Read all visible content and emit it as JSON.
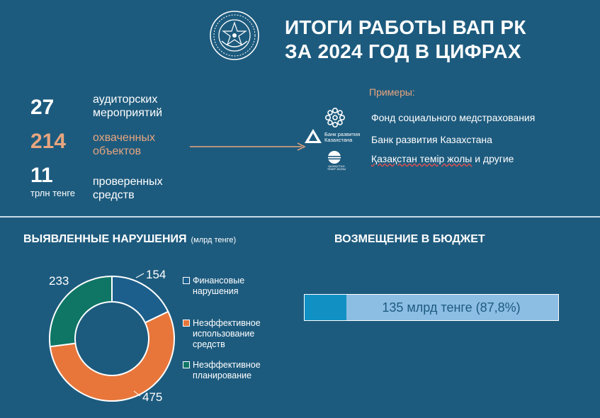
{
  "header": {
    "title_line1": "ИТОГИ РАБОТЫ ВАП РК",
    "title_line2": "ЗА 2024 ГОД В ЦИФРАХ"
  },
  "stats": [
    {
      "value": "27",
      "unit": "",
      "label": "аудиторских мероприятий"
    },
    {
      "value": "214",
      "unit": "",
      "label": "охваченных объектов"
    },
    {
      "value": "11",
      "unit": "трлн тенге",
      "label": "проверенных средств"
    }
  ],
  "examples": {
    "title": "Примеры:",
    "items": [
      {
        "text": "Фонд социального медстрахования",
        "icon": "fsms-logo-icon"
      },
      {
        "text": "Банк развития Казахстана",
        "icon": "development-bank-logo-icon",
        "logo_text": "Банк развития Казахстана"
      },
      {
        "text_main": "Қазақстан темір жолы",
        "text_tail": " и другие",
        "icon": "ktz-logo-icon",
        "logo_text": "ҚАЗАҚСТАН ТЕМІР ЖОЛЫ"
      }
    ]
  },
  "violations": {
    "title": "ВЫЯВЛЕННЫЕ НАРУШЕНИЯ",
    "subtitle": "(млрд тенге)",
    "legend": [
      "Финансовые нарушения",
      "Неэффективное использование средств",
      "Неэффективное планирование"
    ]
  },
  "compensation": {
    "title": "ВОЗМЕЩЕНИЕ В БЮДЖЕТ",
    "bar_text": "135 млрд тенге (87,8%)",
    "fill_fraction": 0.165
  },
  "colors": {
    "background": "#1d5b7e",
    "accent": "#e8a57e",
    "financial": "#1c5f8c",
    "inefficient_use": "#e8763a",
    "inefficient_planning": "#0f7666"
  },
  "chart_data": {
    "type": "pie",
    "title": "ВЫЯВЛЕННЫЕ НАРУШЕНИЯ",
    "subtitle": "(млрд тенге)",
    "categories": [
      "Финансовые нарушения",
      "Неэффективное использование средств",
      "Неэффективное планирование"
    ],
    "values": [
      154,
      475,
      233
    ],
    "colors": [
      "#1c5f8c",
      "#e8763a",
      "#0f7666"
    ],
    "legend": "right"
  }
}
